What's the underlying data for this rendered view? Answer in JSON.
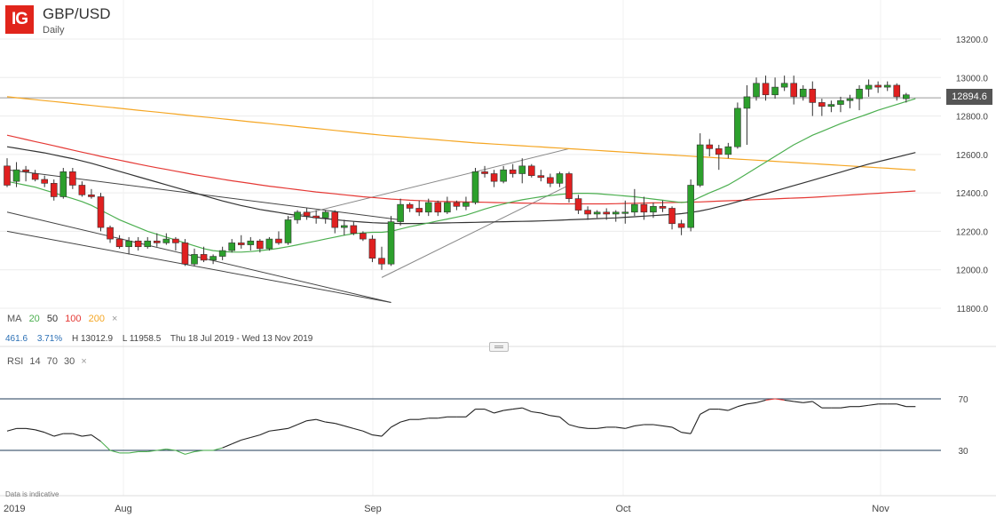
{
  "header": {
    "logo": "IG",
    "symbol": "GBP/USD",
    "frequency": "Daily"
  },
  "ma_legend": {
    "label": "MA",
    "p20": "20",
    "p50": "50",
    "p100": "100",
    "p200": "200",
    "close": "×"
  },
  "stats": {
    "change": "461.6",
    "change_pct": "3.71%",
    "high": "H 13012.9",
    "low": "L 11958.5",
    "range": "Thu 18 Jul 2019 - Wed 13 Nov 2019"
  },
  "rsi_legend": {
    "label": "RSI",
    "period": "14",
    "upper": "70",
    "lower": "30",
    "close": "×"
  },
  "footer_note": "Data is indicative",
  "last_price": "12894.6",
  "colors": {
    "up": "#2ca02c",
    "down": "#e02020",
    "ma20": "#4caf50",
    "ma50": "#333333",
    "ma100": "#e53935",
    "ma200": "#f5a623",
    "rsi": "#222222",
    "rsi_hot": "#e53935"
  },
  "chart_data": {
    "type": "candlestick",
    "y_ticks": [
      "13200.0",
      "13000.0",
      "12800.0",
      "12600.0",
      "12400.0",
      "12200.0",
      "12000.0",
      "11800.0"
    ],
    "ylim": [
      11740,
      13240
    ],
    "x_ticks": [
      "2019",
      "Aug",
      "Sep",
      "Oct",
      "Nov"
    ],
    "rsi_levels": [
      "70",
      "30"
    ],
    "candles": [
      [
        12540,
        12580,
        12430,
        12440
      ],
      [
        12460,
        12560,
        12430,
        12520
      ],
      [
        12520,
        12540,
        12460,
        12510
      ],
      [
        12500,
        12520,
        12460,
        12470
      ],
      [
        12470,
        12490,
        12430,
        12450
      ],
      [
        12450,
        12470,
        12360,
        12380
      ],
      [
        12380,
        12530,
        12370,
        12510
      ],
      [
        12510,
        12530,
        12420,
        12440
      ],
      [
        12440,
        12460,
        12380,
        12390
      ],
      [
        12390,
        12420,
        12370,
        12380
      ],
      [
        12380,
        12400,
        12200,
        12220
      ],
      [
        12220,
        12230,
        12140,
        12160
      ],
      [
        12160,
        12180,
        12110,
        12120
      ],
      [
        12120,
        12170,
        12080,
        12150
      ],
      [
        12150,
        12170,
        12100,
        12120
      ],
      [
        12120,
        12170,
        12110,
        12150
      ],
      [
        12150,
        12190,
        12120,
        12140
      ],
      [
        12140,
        12190,
        12130,
        12160
      ],
      [
        12160,
        12170,
        12100,
        12140
      ],
      [
        12140,
        12160,
        12020,
        12030
      ],
      [
        12030,
        12110,
        12020,
        12080
      ],
      [
        12080,
        12120,
        12040,
        12050
      ],
      [
        12050,
        12080,
        12030,
        12070
      ],
      [
        12070,
        12120,
        12050,
        12100
      ],
      [
        12100,
        12160,
        12090,
        12140
      ],
      [
        12140,
        12180,
        12110,
        12130
      ],
      [
        12130,
        12170,
        12100,
        12150
      ],
      [
        12150,
        12160,
        12090,
        12110
      ],
      [
        12110,
        12170,
        12100,
        12160
      ],
      [
        12160,
        12200,
        12130,
        12140
      ],
      [
        12140,
        12280,
        12130,
        12260
      ],
      [
        12260,
        12310,
        12240,
        12300
      ],
      [
        12300,
        12320,
        12260,
        12280
      ],
      [
        12280,
        12310,
        12240,
        12270
      ],
      [
        12270,
        12310,
        12240,
        12300
      ],
      [
        12300,
        12310,
        12190,
        12220
      ],
      [
        12220,
        12260,
        12180,
        12230
      ],
      [
        12230,
        12250,
        12180,
        12190
      ],
      [
        12190,
        12200,
        12150,
        12160
      ],
      [
        12160,
        12180,
        12040,
        12060
      ],
      [
        12060,
        12120,
        12000,
        12030
      ],
      [
        12030,
        12280,
        12020,
        12250
      ],
      [
        12250,
        12370,
        12230,
        12340
      ],
      [
        12340,
        12350,
        12300,
        12320
      ],
      [
        12320,
        12360,
        12280,
        12300
      ],
      [
        12300,
        12370,
        12280,
        12350
      ],
      [
        12350,
        12360,
        12280,
        12300
      ],
      [
        12300,
        12380,
        12290,
        12350
      ],
      [
        12350,
        12360,
        12310,
        12330
      ],
      [
        12330,
        12380,
        12310,
        12350
      ],
      [
        12350,
        12530,
        12340,
        12510
      ],
      [
        12510,
        12540,
        12480,
        12500
      ],
      [
        12500,
        12520,
        12430,
        12460
      ],
      [
        12460,
        12540,
        12450,
        12520
      ],
      [
        12520,
        12550,
        12480,
        12500
      ],
      [
        12500,
        12580,
        12450,
        12540
      ],
      [
        12540,
        12550,
        12480,
        12490
      ],
      [
        12490,
        12520,
        12460,
        12480
      ],
      [
        12480,
        12500,
        12430,
        12450
      ],
      [
        12450,
        12510,
        12430,
        12500
      ],
      [
        12500,
        12510,
        12350,
        12370
      ],
      [
        12370,
        12390,
        12290,
        12310
      ],
      [
        12310,
        12330,
        12260,
        12290
      ],
      [
        12290,
        12310,
        12270,
        12300
      ],
      [
        12300,
        12320,
        12260,
        12290
      ],
      [
        12290,
        12310,
        12250,
        12300
      ],
      [
        12300,
        12360,
        12240,
        12300
      ],
      [
        12300,
        12420,
        12280,
        12340
      ],
      [
        12340,
        12380,
        12260,
        12300
      ],
      [
        12300,
        12350,
        12270,
        12330
      ],
      [
        12330,
        12360,
        12300,
        12320
      ],
      [
        12320,
        12330,
        12210,
        12240
      ],
      [
        12240,
        12260,
        12180,
        12220
      ],
      [
        12220,
        12470,
        12200,
        12440
      ],
      [
        12440,
        12710,
        12430,
        12650
      ],
      [
        12650,
        12680,
        12590,
        12630
      ],
      [
        12630,
        12650,
        12520,
        12600
      ],
      [
        12600,
        12660,
        12580,
        12640
      ],
      [
        12640,
        12870,
        12630,
        12840
      ],
      [
        12840,
        12960,
        12650,
        12900
      ],
      [
        12900,
        13000,
        12880,
        12970
      ],
      [
        12970,
        13010,
        12880,
        12910
      ],
      [
        12910,
        13000,
        12890,
        12950
      ],
      [
        12950,
        13010,
        12930,
        12970
      ],
      [
        12970,
        13010,
        12860,
        12900
      ],
      [
        12900,
        12960,
        12880,
        12940
      ],
      [
        12940,
        12980,
        12800,
        12870
      ],
      [
        12870,
        12890,
        12800,
        12850
      ],
      [
        12850,
        12880,
        12820,
        12860
      ],
      [
        12860,
        12900,
        12820,
        12880
      ],
      [
        12880,
        12910,
        12840,
        12890
      ],
      [
        12890,
        12960,
        12830,
        12940
      ],
      [
        12940,
        12990,
        12900,
        12960
      ],
      [
        12960,
        12980,
        12920,
        12950
      ],
      [
        12950,
        12980,
        12930,
        12960
      ],
      [
        12960,
        12970,
        12880,
        12900
      ],
      [
        12890,
        12920,
        12870,
        12910
      ]
    ],
    "ma20": [
      12460,
      12450,
      12440,
      12430,
      12415,
      12400,
      12385,
      12370,
      12355,
      12335,
      12310,
      12285,
      12260,
      12240,
      12220,
      12200,
      12185,
      12170,
      12155,
      12140,
      12125,
      12110,
      12100,
      12095,
      12092,
      12092,
      12095,
      12100,
      12105,
      12112,
      12120,
      12130,
      12140,
      12150,
      12160,
      12170,
      12180,
      12188,
      12192,
      12195,
      12195,
      12200,
      12212,
      12224,
      12234,
      12244,
      12254,
      12264,
      12274,
      12284,
      12300,
      12316,
      12330,
      12342,
      12354,
      12364,
      12372,
      12380,
      12386,
      12392,
      12396,
      12398,
      12398,
      12396,
      12392,
      12388,
      12384,
      12380,
      12374,
      12368,
      12362,
      12356,
      12350,
      12355,
      12378,
      12400,
      12420,
      12442,
      12470,
      12500,
      12530,
      12560,
      12590,
      12620,
      12650,
      12675,
      12700,
      12720,
      12740,
      12760,
      12778,
      12795,
      12812,
      12830,
      12845,
      12860,
      12875,
      12890
    ],
    "ma50": [
      12640,
      12632,
      12624,
      12616,
      12608,
      12598,
      12588,
      12578,
      12566,
      12554,
      12540,
      12526,
      12512,
      12498,
      12484,
      12470,
      12456,
      12442,
      12428,
      12414,
      12400,
      12386,
      12372,
      12358,
      12346,
      12334,
      12324,
      12314,
      12306,
      12298,
      12290,
      12283,
      12277,
      12271,
      12266,
      12261,
      12256,
      12252,
      12248,
      12245,
      12243,
      12242,
      12241,
      12241,
      12241,
      12242,
      12243,
      12244,
      12245,
      12246,
      12247,
      12248,
      12249,
      12250,
      12251,
      12252,
      12253,
      12254,
      12256,
      12258,
      12260,
      12262,
      12264,
      12266,
      12268,
      12270,
      12273,
      12276,
      12279,
      12282,
      12285,
      12288,
      12292,
      12298,
      12306,
      12316,
      12328,
      12340,
      12354,
      12368,
      12382,
      12396,
      12410,
      12424,
      12438,
      12452,
      12466,
      12480,
      12494,
      12508,
      12522,
      12536,
      12550,
      12562,
      12574,
      12586,
      12598,
      12610
    ],
    "ma100": [
      12700,
      12689,
      12678,
      12667,
      12656,
      12645,
      12634,
      12623,
      12612,
      12601,
      12590,
      12580,
      12570,
      12560,
      12550,
      12540,
      12531,
      12522,
      12513,
      12504,
      12495,
      12487,
      12479,
      12471,
      12463,
      12456,
      12449,
      12442,
      12435,
      12429,
      12423,
      12417,
      12411,
      12405,
      12400,
      12395,
      12390,
      12385,
      12380,
      12376,
      12372,
      12368,
      12365,
      12362,
      12360,
      12358,
      12356,
      12355,
      12354,
      12353,
      12352,
      12351,
      12350,
      12349,
      12348,
      12347,
      12346,
      12345,
      12344,
      12343,
      12343,
      12343,
      12343,
      12343,
      12343,
      12344,
      12345,
      12346,
      12347,
      12348,
      12349,
      12350,
      12351,
      12352,
      12353,
      12355,
      12357,
      12359,
      12361,
      12363,
      12365,
      12367,
      12369,
      12371,
      12373,
      12375,
      12377,
      12380,
      12383,
      12386,
      12389,
      12392,
      12395,
      12398,
      12401,
      12404,
      12407,
      12410
    ],
    "ma200": [
      12900,
      12895,
      12890,
      12885,
      12880,
      12875,
      12870,
      12865,
      12860,
      12855,
      12850,
      12845,
      12840,
      12835,
      12830,
      12825,
      12820,
      12815,
      12810,
      12805,
      12800,
      12795,
      12790,
      12785,
      12780,
      12775,
      12770,
      12765,
      12760,
      12755,
      12750,
      12745,
      12740,
      12735,
      12730,
      12725,
      12720,
      12715,
      12710,
      12705,
      12700,
      12696,
      12692,
      12688,
      12684,
      12680,
      12676,
      12672,
      12668,
      12664,
      12660,
      12657,
      12654,
      12651,
      12648,
      12645,
      12642,
      12639,
      12636,
      12633,
      12630,
      12627,
      12624,
      12621,
      12618,
      12615,
      12612,
      12609,
      12606,
      12603,
      12600,
      12597,
      12594,
      12591,
      12588,
      12585,
      12582,
      12579,
      12576,
      12573,
      12570,
      12567,
      12564,
      12561,
      12558,
      12555,
      12552,
      12549,
      12546,
      12543,
      12540,
      12537,
      12534,
      12531,
      12528,
      12525,
      12522,
      12519
    ],
    "rsi": [
      45,
      47,
      47,
      46,
      44,
      41,
      43,
      43,
      41,
      42,
      37,
      30,
      28,
      28,
      29,
      29,
      30,
      31,
      30,
      27,
      29,
      30,
      30,
      32,
      35,
      38,
      40,
      42,
      45,
      46,
      47,
      50,
      53,
      54,
      52,
      51,
      49,
      47,
      45,
      42,
      41,
      48,
      52,
      54,
      54,
      55,
      55,
      56,
      56,
      56,
      62,
      62,
      59,
      61,
      62,
      63,
      60,
      59,
      57,
      56,
      50,
      48,
      47,
      47,
      48,
      48,
      47,
      49,
      50,
      50,
      49,
      48,
      44,
      43,
      58,
      62,
      62,
      61,
      64,
      66,
      67,
      69,
      70,
      69,
      68,
      67,
      68,
      63,
      63,
      63,
      64,
      64,
      65,
      66,
      66,
      66,
      64,
      64
    ],
    "trendlines": [
      {
        "from": [
          0,
          12520
        ],
        "to": [
          42,
          12260
        ]
      },
      {
        "from": [
          0,
          12300
        ],
        "to": [
          41,
          11830
        ]
      },
      {
        "from": [
          0,
          12200
        ],
        "to": [
          41,
          11830
        ]
      },
      {
        "from": [
          40,
          11960
        ],
        "to": [
          60,
          12440
        ]
      },
      {
        "from": [
          30,
          12270
        ],
        "to": [
          60,
          12630
        ]
      }
    ]
  }
}
